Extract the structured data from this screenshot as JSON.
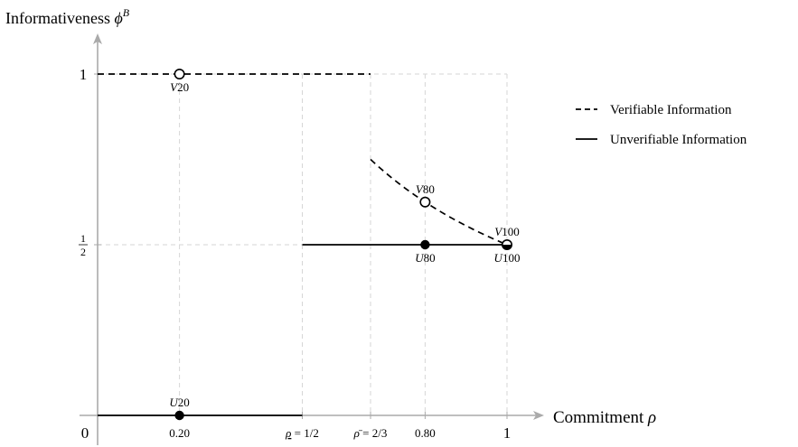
{
  "chart_data": {
    "type": "line",
    "title": "",
    "ylabel": "Informativeness",
    "ylabel_symbol": "ϕ",
    "ylabel_sup": "B",
    "xlabel": "Commitment",
    "xlabel_symbol": "ρ",
    "xlim": [
      0,
      1
    ],
    "ylim": [
      0,
      1
    ],
    "origin_label": "0",
    "x_ticks": [
      {
        "value": 0.2,
        "label": "0.20"
      },
      {
        "value": 0.5,
        "label": "ρ = 1/2"
      },
      {
        "value": 0.6667,
        "label": "ρ̄ = 2/3"
      },
      {
        "value": 0.8,
        "label": "0.80"
      },
      {
        "value": 1,
        "label": "1"
      }
    ],
    "y_ticks": [
      {
        "value": 1,
        "label": "1"
      },
      {
        "value": 0.5,
        "label_num": "1",
        "label_den": "2"
      }
    ],
    "grid": "dashed guides",
    "legend": {
      "position": "top-right",
      "entries": [
        {
          "label": "Verifiable Information",
          "style": "dashed"
        },
        {
          "label": "Unverifiable Information",
          "style": "solid"
        }
      ]
    },
    "series": [
      {
        "name": "Verifiable Information",
        "style": "dashed",
        "segments": [
          {
            "points": [
              [
                0,
                1
              ],
              [
                0.6667,
                1
              ]
            ]
          },
          {
            "function": "1/(2*rho)",
            "x_from": 0.6667,
            "x_to": 1
          }
        ]
      },
      {
        "name": "Unverifiable Information",
        "style": "solid",
        "segments": [
          {
            "points": [
              [
                0,
                0
              ],
              [
                0.5,
                0
              ]
            ]
          },
          {
            "points": [
              [
                0.5,
                0.5
              ],
              [
                1,
                0.5
              ]
            ]
          }
        ]
      }
    ],
    "points": [
      {
        "label": "V20",
        "x": 0.2,
        "y": 1,
        "marker": "open",
        "label_pos": "below"
      },
      {
        "label": "V80",
        "x": 0.8,
        "y": 0.625,
        "marker": "open",
        "label_pos": "above"
      },
      {
        "label": "V100",
        "x": 1,
        "y": 0.5,
        "marker": "open",
        "label_pos": "above"
      },
      {
        "label": "U20",
        "x": 0.2,
        "y": 0,
        "marker": "filled",
        "label_pos": "above"
      },
      {
        "label": "U80",
        "x": 0.8,
        "y": 0.5,
        "marker": "filled",
        "label_pos": "below"
      },
      {
        "label": "U100",
        "x": 1,
        "y": 0.5,
        "marker": "filled",
        "label_pos": "below"
      }
    ]
  }
}
